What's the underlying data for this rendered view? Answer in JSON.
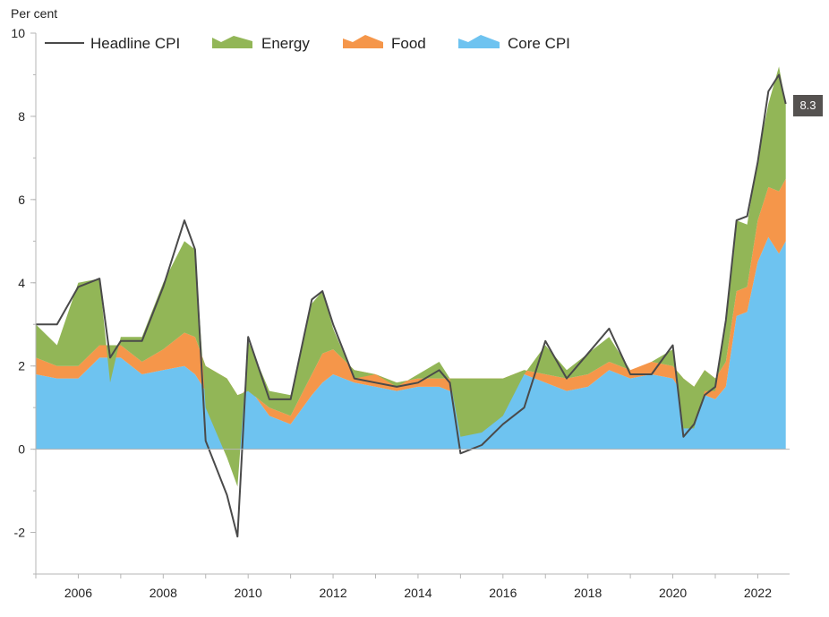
{
  "chart_data": {
    "type": "area",
    "ylabel": "Per cent",
    "ylim": [
      -3,
      10
    ],
    "yticks": [
      -2,
      0,
      2,
      4,
      6,
      8,
      10
    ],
    "xlim": [
      2005,
      2022.75
    ],
    "xticks": [
      2006,
      2008,
      2010,
      2012,
      2014,
      2016,
      2018,
      2020,
      2022
    ],
    "legend_position": "top-left",
    "grid": false,
    "colors": {
      "headline": "#4a4a4a",
      "energy": "#92b657",
      "food": "#f5964a",
      "core": "#6ec3f0",
      "callout_bg": "#555250"
    },
    "callout": "8.3",
    "x": [
      2005.0,
      2005.5,
      2006.0,
      2006.5,
      2006.75,
      2007.0,
      2007.5,
      2008.0,
      2008.5,
      2008.75,
      2009.0,
      2009.5,
      2009.75,
      2010.0,
      2010.5,
      2011.0,
      2011.5,
      2011.75,
      2012.0,
      2012.5,
      2013.0,
      2013.5,
      2014.0,
      2014.5,
      2014.75,
      2015.0,
      2015.5,
      2016.0,
      2016.5,
      2017.0,
      2017.5,
      2018.0,
      2018.5,
      2019.0,
      2019.5,
      2020.0,
      2020.25,
      2020.5,
      2020.75,
      2021.0,
      2021.25,
      2021.5,
      2021.75,
      2022.0,
      2022.25,
      2022.5,
      2022.66
    ],
    "series": [
      {
        "name": "Core CPI",
        "values": [
          1.8,
          1.7,
          1.7,
          2.2,
          2.2,
          2.2,
          1.8,
          1.9,
          2.0,
          1.8,
          1.4,
          1.3,
          1.2,
          1.5,
          0.8,
          0.6,
          1.3,
          1.6,
          1.8,
          1.6,
          1.5,
          1.4,
          1.5,
          1.5,
          1.4,
          1.4,
          1.5,
          1.6,
          1.8,
          1.6,
          1.4,
          1.5,
          1.9,
          1.7,
          1.8,
          1.7,
          1.3,
          1.0,
          1.3,
          1.2,
          1.5,
          3.2,
          3.3,
          4.5,
          5.1,
          4.7,
          5.0
        ]
      },
      {
        "name": "Food",
        "values": [
          0.4,
          0.3,
          0.3,
          0.3,
          0.3,
          0.3,
          0.3,
          0.5,
          0.8,
          0.9,
          0.6,
          0.4,
          0.1,
          -0.1,
          0.2,
          0.2,
          0.5,
          0.7,
          0.6,
          0.3,
          0.3,
          0.2,
          0.2,
          0.2,
          0.3,
          0.3,
          0.2,
          0.1,
          0.1,
          0.2,
          0.3,
          0.3,
          0.2,
          0.2,
          0.3,
          0.3,
          0.4,
          0.5,
          0.6,
          0.5,
          0.6,
          0.6,
          0.6,
          1.0,
          1.2,
          1.5,
          1.5
        ]
      },
      {
        "name": "Energy",
        "values": [
          0.8,
          0.5,
          2.0,
          1.6,
          -0.9,
          0.2,
          0.6,
          1.6,
          2.2,
          2.1,
          -1.0,
          -1.9,
          -2.2,
          1.2,
          0.4,
          0.5,
          1.7,
          1.5,
          0.5,
          -0.2,
          0.0,
          -0.1,
          0.1,
          0.4,
          0.0,
          -1.4,
          -1.3,
          -0.9,
          -0.1,
          0.7,
          0.2,
          0.5,
          0.6,
          0.0,
          0.0,
          0.4,
          -1.2,
          -1.0,
          -0.5,
          -0.3,
          1.0,
          1.7,
          1.5,
          1.5,
          2.0,
          3.0,
          1.8
        ]
      },
      {
        "name": "Headline CPI",
        "values": [
          3.0,
          3.0,
          3.9,
          4.1,
          2.2,
          2.6,
          2.6,
          3.9,
          5.5,
          4.8,
          0.2,
          -1.1,
          -2.1,
          2.7,
          1.2,
          1.2,
          3.6,
          3.8,
          3.0,
          1.7,
          1.6,
          1.5,
          1.6,
          1.9,
          1.6,
          -0.1,
          0.1,
          0.6,
          1.0,
          2.6,
          1.7,
          2.3,
          2.9,
          1.8,
          1.8,
          2.5,
          0.3,
          0.6,
          1.3,
          1.5,
          3.1,
          5.5,
          5.6,
          6.9,
          8.6,
          9.0,
          8.3
        ]
      }
    ]
  },
  "legend": {
    "headline": "Headline CPI",
    "energy": "Energy",
    "food": "Food",
    "core": "Core CPI"
  }
}
